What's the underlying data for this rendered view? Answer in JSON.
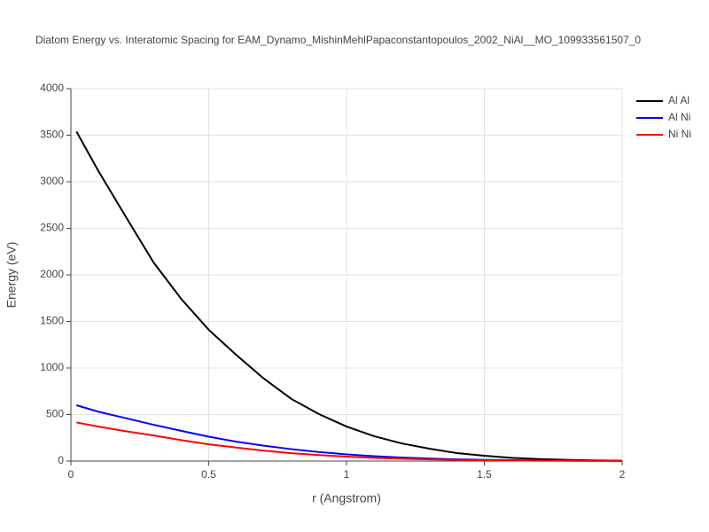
{
  "chart_data": {
    "type": "line",
    "title": "Diatom Energy vs. Interatomic Spacing for EAM_Dynamo_MishinMehlPapaconstantopoulos_2002_NiAl__MO_109933561507_0",
    "xlabel": "r (Angstrom)",
    "ylabel": "Energy (eV)",
    "x": [
      0.02,
      0.1,
      0.2,
      0.3,
      0.4,
      0.5,
      0.6,
      0.7,
      0.8,
      0.9,
      1.0,
      1.1,
      1.2,
      1.3,
      1.4,
      1.5,
      1.6,
      1.7,
      1.8,
      1.9,
      2.0
    ],
    "series": [
      {
        "name": "Al Al",
        "color": "#000000",
        "values": [
          3540,
          3114,
          2620,
          2133,
          1743,
          1410,
          1140,
          886,
          667,
          505,
          371,
          267,
          190,
          133,
          86,
          57,
          35,
          22,
          13,
          7,
          3
        ]
      },
      {
        "name": "Al Ni",
        "color": "#0000ff",
        "values": [
          600,
          530,
          460,
          390,
          325,
          262,
          208,
          165,
          128,
          97,
          72,
          52,
          38,
          27,
          19,
          13,
          9,
          6,
          4,
          3,
          2
        ]
      },
      {
        "name": "Ni Ni",
        "color": "#ff0000",
        "values": [
          415,
          370,
          320,
          275,
          225,
          180,
          145,
          112,
          85,
          64,
          48,
          35,
          25,
          18,
          13,
          9,
          6,
          4,
          3,
          2,
          1
        ]
      }
    ],
    "xlim": [
      0,
      2
    ],
    "xticks": [
      0,
      0.5,
      1,
      1.5,
      2
    ],
    "ylim": [
      0,
      4000
    ],
    "yticks": [
      0,
      500,
      1000,
      1500,
      2000,
      2500,
      3000,
      3500,
      4000
    ],
    "grid": true,
    "legend": "top-right"
  }
}
